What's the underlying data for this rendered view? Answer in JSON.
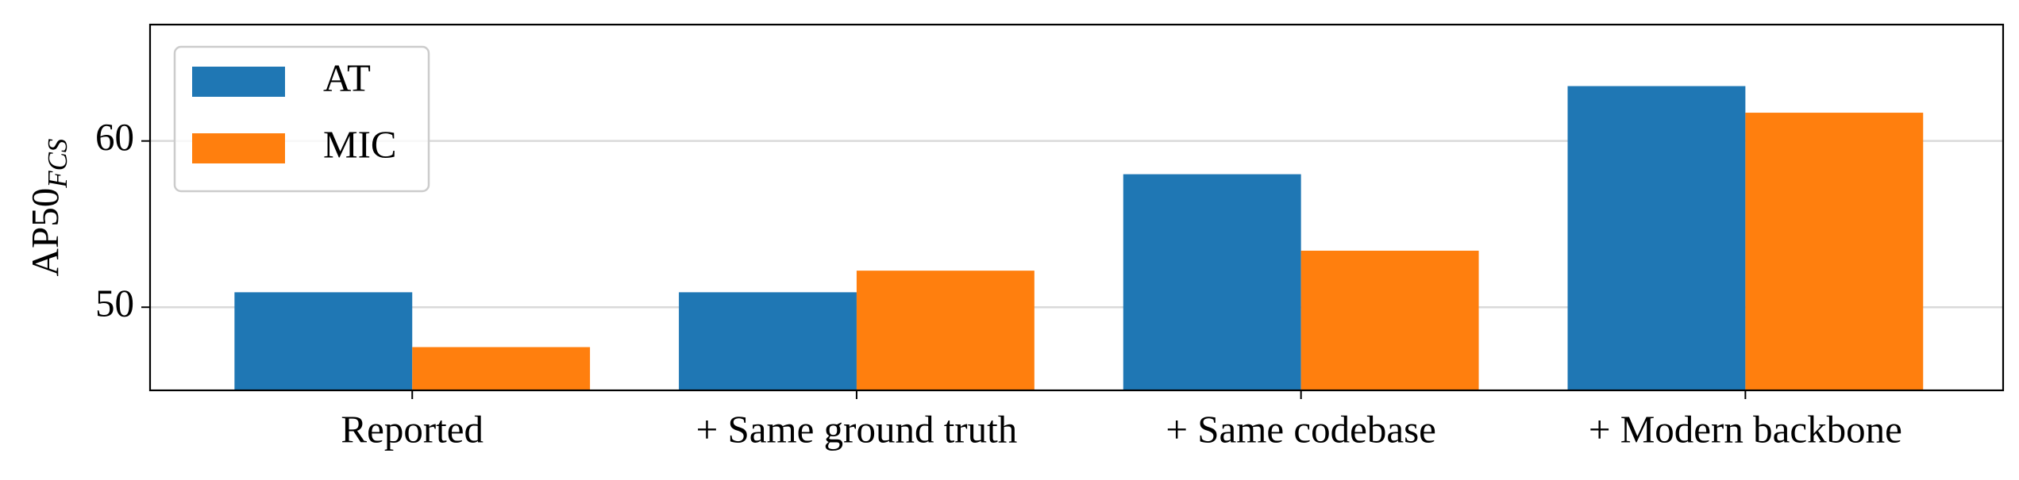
{
  "chart_data": {
    "type": "bar",
    "ylabel": {
      "text": "AP50",
      "subscript": "FCS"
    },
    "categories": [
      "Reported",
      "+ Same ground truth",
      "+ Same codebase",
      "+ Modern backbone"
    ],
    "series": [
      {
        "name": "AT",
        "color": "#1f77b4",
        "values": [
          50.9,
          50.9,
          58.0,
          63.3
        ]
      },
      {
        "name": "MIC",
        "color": "#ff7f0e",
        "values": [
          47.6,
          52.2,
          53.4,
          61.7
        ]
      }
    ],
    "ylim": [
      45,
      67
    ],
    "yticks": [
      50,
      60
    ],
    "grid": true,
    "legend": "upper left"
  }
}
